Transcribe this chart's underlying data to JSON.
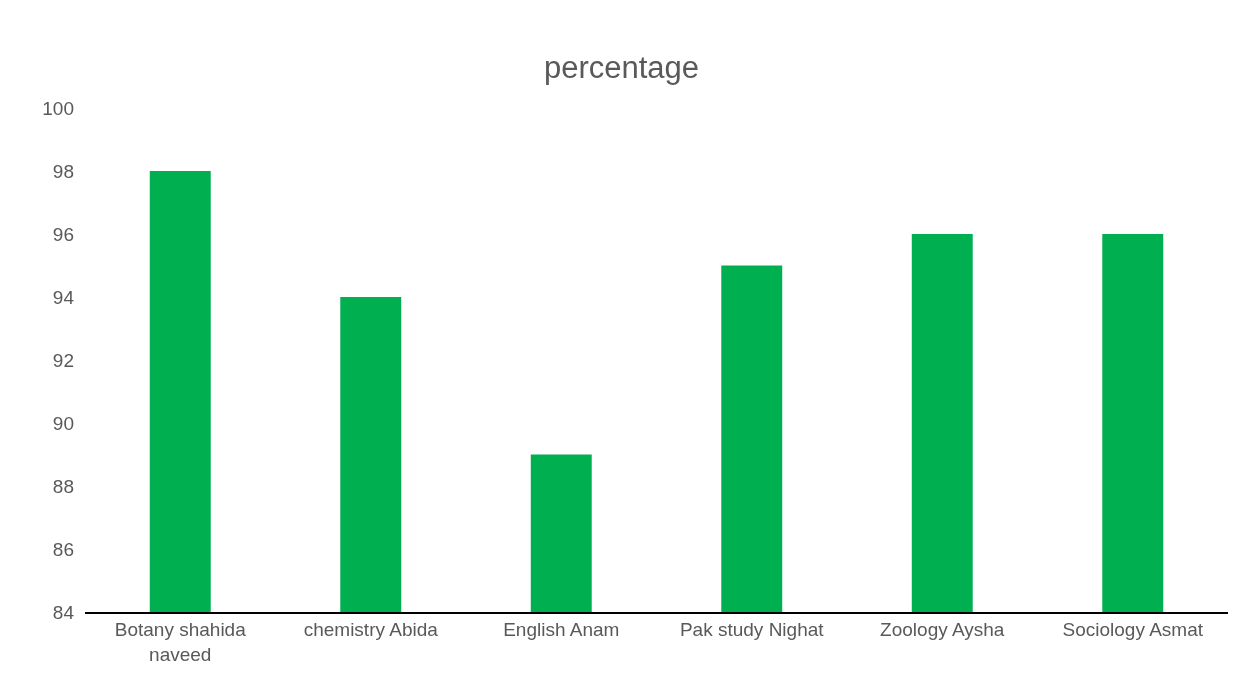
{
  "chart_data": {
    "type": "bar",
    "title": "percentage",
    "categories": [
      "Botany shahida\nnaveed",
      "chemistry Abida",
      "English Anam",
      "Pak study Nighat",
      "Zoology Aysha",
      "Sociology Asmat"
    ],
    "values": [
      98,
      94,
      89,
      95,
      96,
      96
    ],
    "color": "#00b050",
    "ylim": [
      84,
      100
    ],
    "yticks": [
      84,
      86,
      88,
      90,
      92,
      94,
      96,
      98,
      100
    ]
  }
}
